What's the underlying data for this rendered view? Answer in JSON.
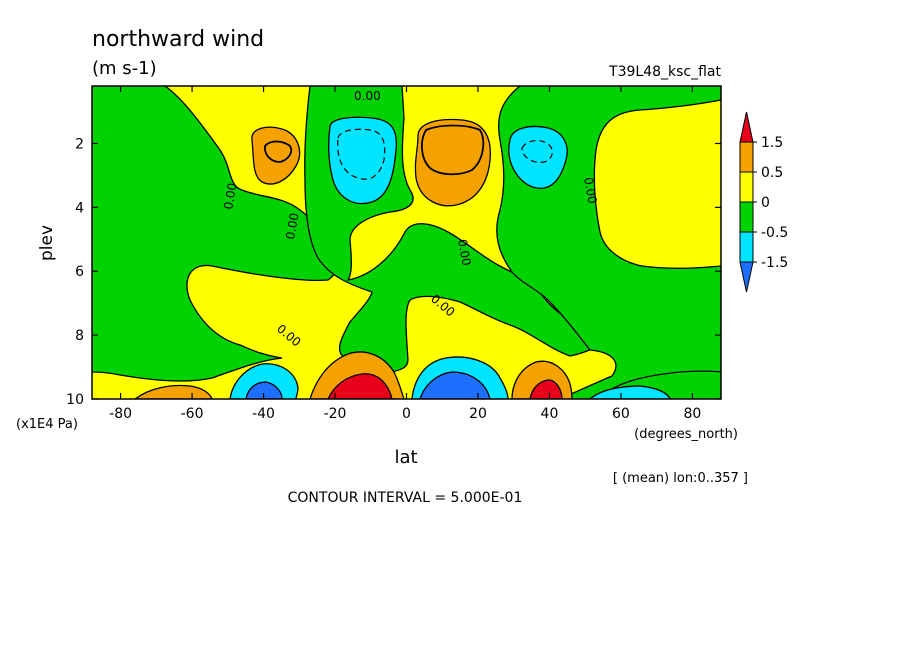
{
  "chart_data": {
    "type": "heatmap",
    "title": "northward wind",
    "units": "(m s-1)",
    "run_label": "T39L48_ksc_flat",
    "xlabel": "lat",
    "x_units": "(degrees_north)",
    "ylabel": "plev",
    "y_units": "(x1E4 Pa)",
    "xlim": [
      -88,
      88
    ],
    "ylim": [
      0.2,
      10
    ],
    "y_inverted": true,
    "x_ticks": [
      "-80",
      "-60",
      "-40",
      "-20",
      "0",
      "20",
      "40",
      "60",
      "80"
    ],
    "y_ticks": [
      "2",
      "4",
      "6",
      "8",
      "10"
    ],
    "footnote": "[ (mean) lon:0..357 ]",
    "contour_interval_text": "CONTOUR INTERVAL = 5.000E-01",
    "contour_labels": [
      "0.00",
      "0.00",
      "0.00",
      "0.00",
      "0.00",
      "0.00",
      "0.00"
    ],
    "colorbar": {
      "levels": [
        "1.5",
        "0.5",
        "0",
        "-0.5",
        "-1.5"
      ],
      "colors": [
        "#e8001a",
        "#f5a200",
        "#ffff00",
        "#00d200",
        "#00e5ff",
        "#1f6fff"
      ]
    },
    "fill_colors": {
      "pos_high": "#e8001a",
      "pos_mid": "#f5a200",
      "pos_low": "#ffff00",
      "neg_low": "#00d200",
      "neg_mid": "#00e5ff",
      "neg_high": "#1f6fff"
    }
  }
}
